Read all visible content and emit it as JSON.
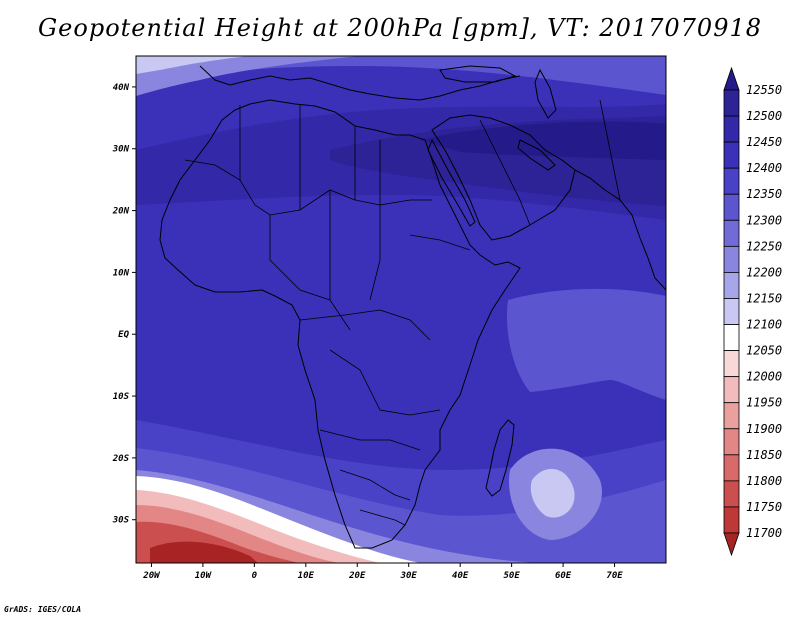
{
  "title": "Geopotential Height at 200hPa [gpm], VT: 2017070918",
  "credit": "GrADS: IGES/COLA",
  "map": {
    "region": "Africa, Arabian Peninsula and Western Indian Ocean",
    "lon_range": [
      -23,
      80
    ],
    "lat_range": [
      -37,
      45
    ],
    "lon_ticks": [
      "20W",
      "10W",
      "0",
      "10E",
      "20E",
      "30E",
      "40E",
      "50E",
      "60E",
      "70E"
    ],
    "lat_ticks": [
      "40N",
      "30N",
      "20N",
      "10N",
      "EQ",
      "10S",
      "20S",
      "30S"
    ]
  },
  "colorbar": {
    "labels": [
      "12550",
      "12500",
      "12450",
      "12400",
      "12350",
      "12300",
      "12250",
      "12200",
      "12150",
      "12100",
      "12050",
      "12000",
      "11950",
      "11900",
      "11850",
      "11800",
      "11750",
      "11700"
    ],
    "colors": [
      "#241a8a",
      "#2d2296",
      "#3328a8",
      "#3b31b8",
      "#4a42c6",
      "#5c55d0",
      "#716bd8",
      "#8a86e0",
      "#a8a6ea",
      "#c8c8f2",
      "#ffffff",
      "#f8d8d8",
      "#f2bcbc",
      "#eba0a0",
      "#e28686",
      "#d86a6a",
      "#cc4f4f",
      "#bf3838",
      "#a82424"
    ]
  }
}
